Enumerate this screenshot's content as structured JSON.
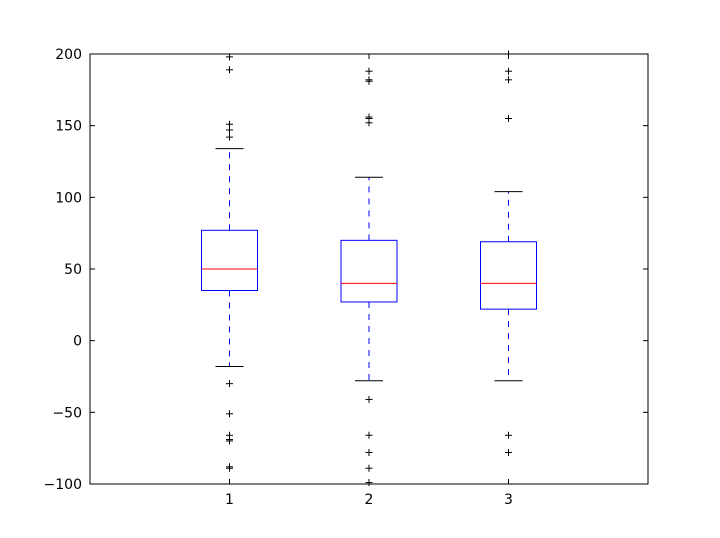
{
  "chart_data": {
    "type": "box",
    "title": "",
    "xlabel": "",
    "ylabel": "",
    "ylim": [
      -100,
      200
    ],
    "yticks": [
      -100,
      -50,
      0,
      50,
      100,
      150,
      200
    ],
    "categories": [
      "1",
      "2",
      "3"
    ],
    "grid": false,
    "boxes": [
      {
        "category": "1",
        "whisker_low": -18,
        "q1": 35,
        "median": 50,
        "q3": 77,
        "whisker_high": 134,
        "fliers": [
          198,
          189,
          151,
          147,
          142,
          -30,
          -51,
          -66,
          -69,
          -70,
          -88,
          -89
        ]
      },
      {
        "category": "2",
        "whisker_low": -28,
        "q1": 27,
        "median": 40,
        "q3": 70,
        "whisker_high": 114,
        "fliers": [
          188,
          182,
          181,
          156,
          155,
          152,
          -41,
          -66,
          -78,
          -89,
          -99
        ]
      },
      {
        "category": "3",
        "whisker_low": -28,
        "q1": 22,
        "median": 40,
        "q3": 69,
        "whisker_high": 104,
        "fliers": [
          200,
          188,
          182,
          155,
          -66,
          -78
        ]
      }
    ],
    "colors": {
      "box": "#0000ff",
      "whisker": "#0000ff",
      "median": "#ff0000",
      "cap": "#000000",
      "flier": "#000000",
      "axes": "#000000"
    }
  }
}
